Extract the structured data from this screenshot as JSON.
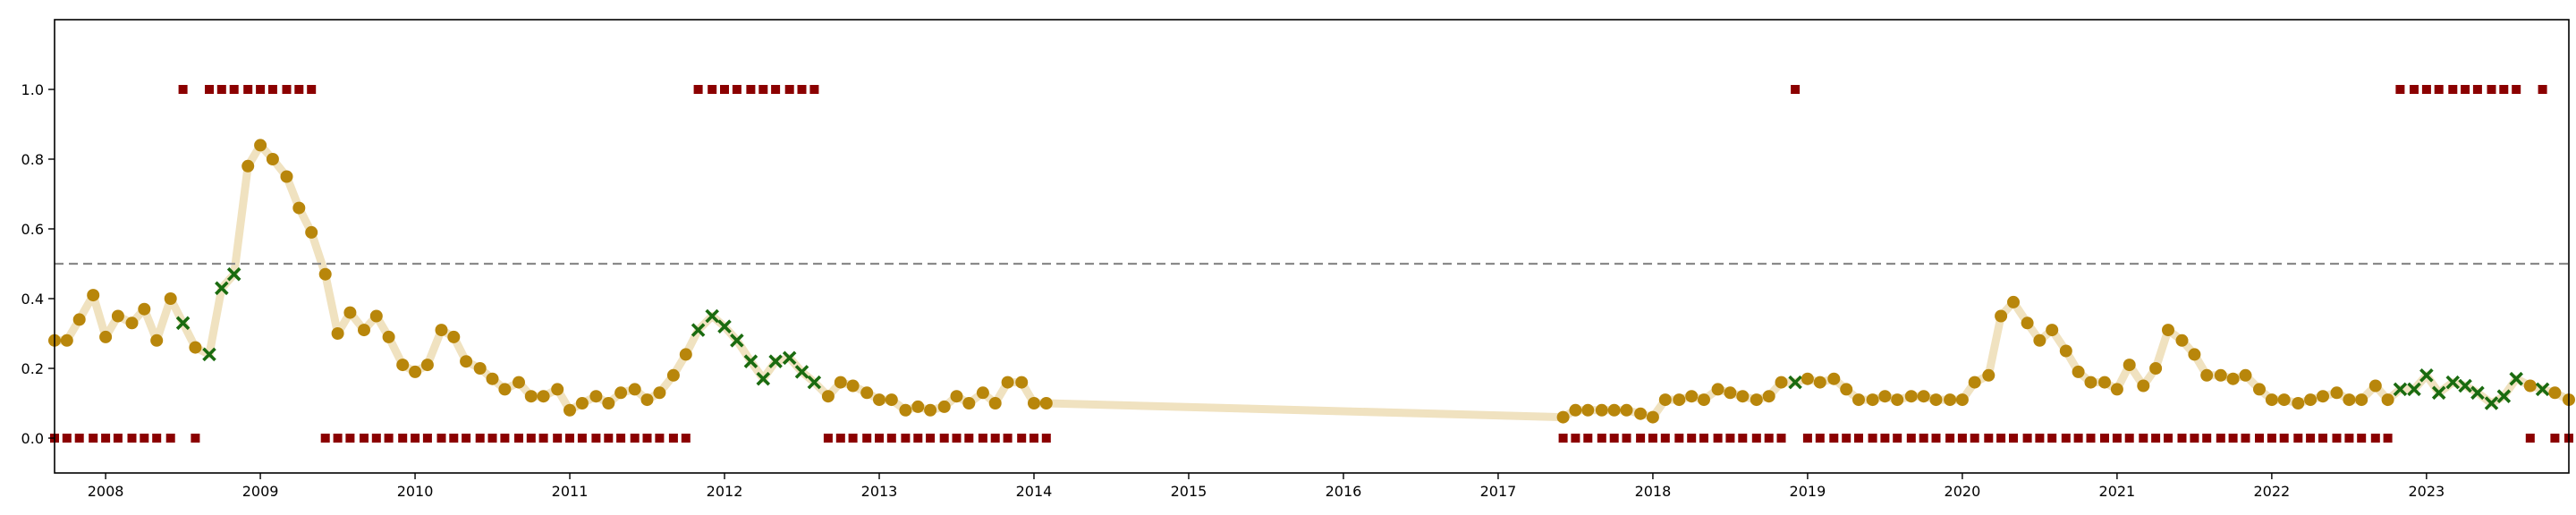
{
  "chart_data": {
    "type": "scatter",
    "title": "",
    "xlabel": "",
    "ylabel": "",
    "xlim": [
      2007.67,
      2023.92
    ],
    "ylim": [
      -0.1,
      1.2
    ],
    "grid": false,
    "x_ticks": [
      "2008",
      "2009",
      "2010",
      "2011",
      "2012",
      "2013",
      "2014",
      "2015",
      "2016",
      "2017",
      "2018",
      "2019",
      "2020",
      "2021",
      "2022",
      "2023"
    ],
    "y_ticks": [
      "0.0",
      "0.2",
      "0.4",
      "0.6",
      "0.8",
      "1.0"
    ],
    "threshold": 0.5,
    "colors": {
      "probability_line": "#f0e2c0",
      "probability_dot": "#b8860b",
      "flag_cross": "#1a6b10",
      "state_square": "#8b0000",
      "threshold_line": "#8a8a8a",
      "axes": "#000000"
    },
    "probability_series": [
      [
        2007.67,
        0.28
      ],
      [
        2007.75,
        0.28
      ],
      [
        2007.83,
        0.34
      ],
      [
        2007.92,
        0.41
      ],
      [
        2008.0,
        0.29
      ],
      [
        2008.08,
        0.35
      ],
      [
        2008.17,
        0.33
      ],
      [
        2008.25,
        0.37
      ],
      [
        2008.33,
        0.28
      ],
      [
        2008.42,
        0.4
      ],
      [
        2008.5,
        0.33
      ],
      [
        2008.58,
        0.26
      ],
      [
        2008.67,
        0.24
      ],
      [
        2008.75,
        0.43
      ],
      [
        2008.83,
        0.47
      ],
      [
        2008.92,
        0.78
      ],
      [
        2009.0,
        0.84
      ],
      [
        2009.08,
        0.8
      ],
      [
        2009.17,
        0.75
      ],
      [
        2009.25,
        0.66
      ],
      [
        2009.33,
        0.59
      ],
      [
        2009.42,
        0.47
      ],
      [
        2009.5,
        0.3
      ],
      [
        2009.58,
        0.36
      ],
      [
        2009.67,
        0.31
      ],
      [
        2009.75,
        0.35
      ],
      [
        2009.83,
        0.29
      ],
      [
        2009.92,
        0.21
      ],
      [
        2010.0,
        0.19
      ],
      [
        2010.08,
        0.21
      ],
      [
        2010.17,
        0.31
      ],
      [
        2010.25,
        0.29
      ],
      [
        2010.33,
        0.22
      ],
      [
        2010.42,
        0.2
      ],
      [
        2010.5,
        0.17
      ],
      [
        2010.58,
        0.14
      ],
      [
        2010.67,
        0.16
      ],
      [
        2010.75,
        0.12
      ],
      [
        2010.83,
        0.12
      ],
      [
        2010.92,
        0.14
      ],
      [
        2011.0,
        0.08
      ],
      [
        2011.08,
        0.1
      ],
      [
        2011.17,
        0.12
      ],
      [
        2011.25,
        0.1
      ],
      [
        2011.33,
        0.13
      ],
      [
        2011.42,
        0.14
      ],
      [
        2011.5,
        0.11
      ],
      [
        2011.58,
        0.13
      ],
      [
        2011.67,
        0.18
      ],
      [
        2011.75,
        0.24
      ],
      [
        2011.83,
        0.31
      ],
      [
        2011.92,
        0.35
      ],
      [
        2012.0,
        0.32
      ],
      [
        2012.08,
        0.28
      ],
      [
        2012.17,
        0.22
      ],
      [
        2012.25,
        0.17
      ],
      [
        2012.33,
        0.22
      ],
      [
        2012.42,
        0.23
      ],
      [
        2012.5,
        0.19
      ],
      [
        2012.58,
        0.16
      ],
      [
        2012.67,
        0.12
      ],
      [
        2012.75,
        0.16
      ],
      [
        2012.83,
        0.15
      ],
      [
        2012.92,
        0.13
      ],
      [
        2013.0,
        0.11
      ],
      [
        2013.08,
        0.11
      ],
      [
        2013.17,
        0.08
      ],
      [
        2013.25,
        0.09
      ],
      [
        2013.33,
        0.08
      ],
      [
        2013.42,
        0.09
      ],
      [
        2013.5,
        0.12
      ],
      [
        2013.58,
        0.1
      ],
      [
        2013.67,
        0.13
      ],
      [
        2013.75,
        0.1
      ],
      [
        2013.83,
        0.16
      ],
      [
        2013.92,
        0.16
      ],
      [
        2014.0,
        0.1
      ],
      [
        2014.08,
        0.1
      ],
      [
        2017.42,
        0.06
      ],
      [
        2017.5,
        0.08
      ],
      [
        2017.58,
        0.08
      ],
      [
        2017.67,
        0.08
      ],
      [
        2017.75,
        0.08
      ],
      [
        2017.83,
        0.08
      ],
      [
        2017.92,
        0.07
      ],
      [
        2018.0,
        0.06
      ],
      [
        2018.08,
        0.11
      ],
      [
        2018.17,
        0.11
      ],
      [
        2018.25,
        0.12
      ],
      [
        2018.33,
        0.11
      ],
      [
        2018.42,
        0.14
      ],
      [
        2018.5,
        0.13
      ],
      [
        2018.58,
        0.12
      ],
      [
        2018.67,
        0.11
      ],
      [
        2018.75,
        0.12
      ],
      [
        2018.83,
        0.16
      ],
      [
        2018.92,
        0.16
      ],
      [
        2019.0,
        0.17
      ],
      [
        2019.08,
        0.16
      ],
      [
        2019.17,
        0.17
      ],
      [
        2019.25,
        0.14
      ],
      [
        2019.33,
        0.11
      ],
      [
        2019.42,
        0.11
      ],
      [
        2019.5,
        0.12
      ],
      [
        2019.58,
        0.11
      ],
      [
        2019.67,
        0.12
      ],
      [
        2019.75,
        0.12
      ],
      [
        2019.83,
        0.11
      ],
      [
        2019.92,
        0.11
      ],
      [
        2020.0,
        0.11
      ],
      [
        2020.08,
        0.16
      ],
      [
        2020.17,
        0.18
      ],
      [
        2020.25,
        0.35
      ],
      [
        2020.33,
        0.39
      ],
      [
        2020.42,
        0.33
      ],
      [
        2020.5,
        0.28
      ],
      [
        2020.58,
        0.31
      ],
      [
        2020.67,
        0.25
      ],
      [
        2020.75,
        0.19
      ],
      [
        2020.83,
        0.16
      ],
      [
        2020.92,
        0.16
      ],
      [
        2021.0,
        0.14
      ],
      [
        2021.08,
        0.21
      ],
      [
        2021.17,
        0.15
      ],
      [
        2021.25,
        0.2
      ],
      [
        2021.33,
        0.31
      ],
      [
        2021.42,
        0.28
      ],
      [
        2021.5,
        0.24
      ],
      [
        2021.58,
        0.18
      ],
      [
        2021.67,
        0.18
      ],
      [
        2021.75,
        0.17
      ],
      [
        2021.83,
        0.18
      ],
      [
        2021.92,
        0.14
      ],
      [
        2022.0,
        0.11
      ],
      [
        2022.08,
        0.11
      ],
      [
        2022.17,
        0.1
      ],
      [
        2022.25,
        0.11
      ],
      [
        2022.33,
        0.12
      ],
      [
        2022.42,
        0.13
      ],
      [
        2022.5,
        0.11
      ],
      [
        2022.58,
        0.11
      ],
      [
        2022.67,
        0.15
      ],
      [
        2022.75,
        0.11
      ],
      [
        2022.83,
        0.14
      ],
      [
        2022.92,
        0.14
      ],
      [
        2023.0,
        0.18
      ],
      [
        2023.08,
        0.13
      ],
      [
        2023.17,
        0.16
      ],
      [
        2023.25,
        0.15
      ],
      [
        2023.33,
        0.13
      ],
      [
        2023.42,
        0.1
      ],
      [
        2023.5,
        0.12
      ],
      [
        2023.58,
        0.17
      ],
      [
        2023.67,
        0.15
      ],
      [
        2023.75,
        0.14
      ],
      [
        2023.83,
        0.13
      ],
      [
        2023.92,
        0.11
      ]
    ],
    "flagged_x": [
      2008.5,
      2008.67,
      2008.75,
      2008.83,
      2011.83,
      2011.92,
      2012.0,
      2012.08,
      2012.17,
      2012.25,
      2012.33,
      2012.42,
      2012.5,
      2012.58,
      2018.92,
      2022.83,
      2022.92,
      2023.0,
      2023.08,
      2023.17,
      2023.25,
      2023.33,
      2023.42,
      2023.5,
      2023.58,
      2023.75
    ],
    "state_series": [
      [
        2007.67,
        0
      ],
      [
        2007.75,
        0
      ],
      [
        2007.83,
        0
      ],
      [
        2007.92,
        0
      ],
      [
        2008.0,
        0
      ],
      [
        2008.08,
        0
      ],
      [
        2008.17,
        0
      ],
      [
        2008.25,
        0
      ],
      [
        2008.33,
        0
      ],
      [
        2008.42,
        0
      ],
      [
        2008.5,
        1
      ],
      [
        2008.58,
        0
      ],
      [
        2008.67,
        1
      ],
      [
        2008.75,
        1
      ],
      [
        2008.83,
        1
      ],
      [
        2008.92,
        1
      ],
      [
        2009.0,
        1
      ],
      [
        2009.08,
        1
      ],
      [
        2009.17,
        1
      ],
      [
        2009.25,
        1
      ],
      [
        2009.33,
        1
      ],
      [
        2009.42,
        0
      ],
      [
        2009.5,
        0
      ],
      [
        2009.58,
        0
      ],
      [
        2009.67,
        0
      ],
      [
        2009.75,
        0
      ],
      [
        2009.83,
        0
      ],
      [
        2009.92,
        0
      ],
      [
        2010.0,
        0
      ],
      [
        2010.08,
        0
      ],
      [
        2010.17,
        0
      ],
      [
        2010.25,
        0
      ],
      [
        2010.33,
        0
      ],
      [
        2010.42,
        0
      ],
      [
        2010.5,
        0
      ],
      [
        2010.58,
        0
      ],
      [
        2010.67,
        0
      ],
      [
        2010.75,
        0
      ],
      [
        2010.83,
        0
      ],
      [
        2010.92,
        0
      ],
      [
        2011.0,
        0
      ],
      [
        2011.08,
        0
      ],
      [
        2011.17,
        0
      ],
      [
        2011.25,
        0
      ],
      [
        2011.33,
        0
      ],
      [
        2011.42,
        0
      ],
      [
        2011.5,
        0
      ],
      [
        2011.58,
        0
      ],
      [
        2011.67,
        0
      ],
      [
        2011.75,
        0
      ],
      [
        2011.83,
        1
      ],
      [
        2011.92,
        1
      ],
      [
        2012.0,
        1
      ],
      [
        2012.08,
        1
      ],
      [
        2012.17,
        1
      ],
      [
        2012.25,
        1
      ],
      [
        2012.33,
        1
      ],
      [
        2012.42,
        1
      ],
      [
        2012.5,
        1
      ],
      [
        2012.58,
        1
      ],
      [
        2012.67,
        0
      ],
      [
        2012.75,
        0
      ],
      [
        2012.83,
        0
      ],
      [
        2012.92,
        0
      ],
      [
        2013.0,
        0
      ],
      [
        2013.08,
        0
      ],
      [
        2013.17,
        0
      ],
      [
        2013.25,
        0
      ],
      [
        2013.33,
        0
      ],
      [
        2013.42,
        0
      ],
      [
        2013.5,
        0
      ],
      [
        2013.58,
        0
      ],
      [
        2013.67,
        0
      ],
      [
        2013.75,
        0
      ],
      [
        2013.83,
        0
      ],
      [
        2013.92,
        0
      ],
      [
        2014.0,
        0
      ],
      [
        2014.08,
        0
      ],
      [
        2017.42,
        0
      ],
      [
        2017.5,
        0
      ],
      [
        2017.58,
        0
      ],
      [
        2017.67,
        0
      ],
      [
        2017.75,
        0
      ],
      [
        2017.83,
        0
      ],
      [
        2017.92,
        0
      ],
      [
        2018.0,
        0
      ],
      [
        2018.08,
        0
      ],
      [
        2018.17,
        0
      ],
      [
        2018.25,
        0
      ],
      [
        2018.33,
        0
      ],
      [
        2018.42,
        0
      ],
      [
        2018.5,
        0
      ],
      [
        2018.58,
        0
      ],
      [
        2018.67,
        0
      ],
      [
        2018.75,
        0
      ],
      [
        2018.83,
        0
      ],
      [
        2018.92,
        1
      ],
      [
        2019.0,
        0
      ],
      [
        2019.08,
        0
      ],
      [
        2019.17,
        0
      ],
      [
        2019.25,
        0
      ],
      [
        2019.33,
        0
      ],
      [
        2019.42,
        0
      ],
      [
        2019.5,
        0
      ],
      [
        2019.58,
        0
      ],
      [
        2019.67,
        0
      ],
      [
        2019.75,
        0
      ],
      [
        2019.83,
        0
      ],
      [
        2019.92,
        0
      ],
      [
        2020.0,
        0
      ],
      [
        2020.08,
        0
      ],
      [
        2020.17,
        0
      ],
      [
        2020.25,
        0
      ],
      [
        2020.33,
        0
      ],
      [
        2020.42,
        0
      ],
      [
        2020.5,
        0
      ],
      [
        2020.58,
        0
      ],
      [
        2020.67,
        0
      ],
      [
        2020.75,
        0
      ],
      [
        2020.83,
        0
      ],
      [
        2020.92,
        0
      ],
      [
        2021.0,
        0
      ],
      [
        2021.08,
        0
      ],
      [
        2021.17,
        0
      ],
      [
        2021.25,
        0
      ],
      [
        2021.33,
        0
      ],
      [
        2021.42,
        0
      ],
      [
        2021.5,
        0
      ],
      [
        2021.58,
        0
      ],
      [
        2021.67,
        0
      ],
      [
        2021.75,
        0
      ],
      [
        2021.83,
        0
      ],
      [
        2021.92,
        0
      ],
      [
        2022.0,
        0
      ],
      [
        2022.08,
        0
      ],
      [
        2022.17,
        0
      ],
      [
        2022.25,
        0
      ],
      [
        2022.33,
        0
      ],
      [
        2022.42,
        0
      ],
      [
        2022.5,
        0
      ],
      [
        2022.58,
        0
      ],
      [
        2022.67,
        0
      ],
      [
        2022.75,
        0
      ],
      [
        2022.83,
        1
      ],
      [
        2022.92,
        1
      ],
      [
        2023.0,
        1
      ],
      [
        2023.08,
        1
      ],
      [
        2023.17,
        1
      ],
      [
        2023.25,
        1
      ],
      [
        2023.33,
        1
      ],
      [
        2023.42,
        1
      ],
      [
        2023.5,
        1
      ],
      [
        2023.58,
        1
      ],
      [
        2023.67,
        0
      ],
      [
        2023.75,
        1
      ],
      [
        2023.83,
        0
      ],
      [
        2023.92,
        0
      ]
    ]
  }
}
